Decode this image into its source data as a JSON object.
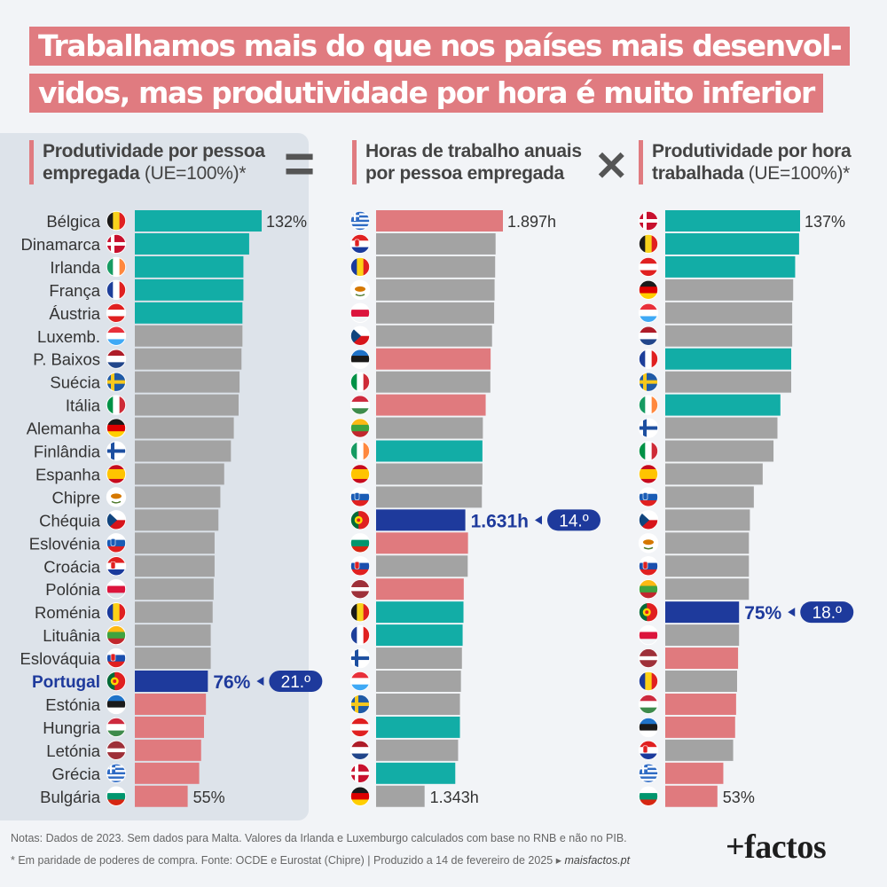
{
  "title": {
    "line1": "Trabalhamos mais do que nos países mais desenvol-",
    "line2": "vidos, mas produtividade por hora é muito inferior"
  },
  "headers": {
    "col1": {
      "bold1": "Produtividade por pessoa",
      "bold2": "empregada",
      "light": " (UE=100%)*"
    },
    "col2": {
      "bold1": "Horas de trabalho anuais",
      "bold2": "por pessoa empregada"
    },
    "col3": {
      "bold1": "Produtividade por hora",
      "bold2": "trabalhada",
      "light": " (UE=100%)*"
    }
  },
  "operators": {
    "equals": "=",
    "times": "✕"
  },
  "colors": {
    "teal": "#12ada6",
    "gray": "#a3a3a3",
    "red": "#e07a7e",
    "navy": "#1e3a9c",
    "title_bg": "#e07b80"
  },
  "chart_data": [
    {
      "type": "bar",
      "orientation": "horizontal",
      "name": "Produtividade por pessoa empregada (UE=100%)",
      "categories": [
        "Bélgica",
        "Dinamarca",
        "Irlanda",
        "França",
        "Áustria",
        "Luxemb.",
        "P. Baixos",
        "Suécia",
        "Itália",
        "Alemanha",
        "Finlândia",
        "Espanha",
        "Chipre",
        "Chéquia",
        "Eslovénia",
        "Croácia",
        "Polónia",
        "Roménia",
        "Lituânia",
        "Eslováquia",
        "Portugal",
        "Estónia",
        "Hungria",
        "Letónia",
        "Grécia",
        "Bulgária"
      ],
      "values": [
        132,
        119,
        113,
        113,
        112,
        112,
        111,
        109,
        108,
        103,
        100,
        93,
        89,
        87,
        83,
        83,
        82,
        81,
        79,
        79,
        76,
        74,
        72,
        69,
        67,
        55
      ],
      "color_groups": [
        "teal",
        "teal",
        "teal",
        "teal",
        "teal",
        "gray",
        "gray",
        "gray",
        "gray",
        "gray",
        "gray",
        "gray",
        "gray",
        "gray",
        "gray",
        "gray",
        "gray",
        "gray",
        "gray",
        "gray",
        "navy",
        "red",
        "red",
        "red",
        "red",
        "red"
      ],
      "highlight": {
        "country": "Portugal",
        "label": "76%",
        "rank": "21.º"
      },
      "value_labels": {
        "first": "132%",
        "last": "55%"
      }
    },
    {
      "type": "bar",
      "orientation": "horizontal",
      "name": "Horas de trabalho anuais por pessoa empregada",
      "flags": [
        "gr",
        "hr",
        "ro",
        "cy",
        "pl",
        "cz",
        "ee",
        "it",
        "hu",
        "lt",
        "ie",
        "es",
        "si",
        "pt",
        "bg",
        "sk",
        "lv",
        "be",
        "fr",
        "fi",
        "lu",
        "se",
        "at",
        "nl",
        "dk",
        "de"
      ],
      "values": [
        1897,
        1845,
        1842,
        1838,
        1835,
        1820,
        1810,
        1808,
        1775,
        1755,
        1752,
        1752,
        1748,
        1631,
        1650,
        1648,
        1620,
        1618,
        1612,
        1607,
        1600,
        1593,
        1593,
        1580,
        1560,
        1343
      ],
      "color_groups": [
        "red",
        "gray",
        "gray",
        "gray",
        "gray",
        "gray",
        "red",
        "gray",
        "red",
        "gray",
        "teal",
        "gray",
        "gray",
        "navy",
        "red",
        "gray",
        "red",
        "teal",
        "teal",
        "gray",
        "gray",
        "gray",
        "teal",
        "gray",
        "teal",
        "gray"
      ],
      "highlight": {
        "country": "Portugal",
        "label": "1.631h",
        "rank": "14.º"
      },
      "value_labels": {
        "first": "1.897h",
        "last": "1.343h"
      }
    },
    {
      "type": "bar",
      "orientation": "horizontal",
      "name": "Produtividade por hora trabalhada (UE=100%)",
      "flags": [
        "dk",
        "be",
        "at",
        "de",
        "lu",
        "nl",
        "fr",
        "se",
        "ie",
        "fi",
        "it",
        "es",
        "si",
        "cz",
        "cy",
        "sk",
        "lt",
        "pt",
        "pl",
        "lv",
        "ro",
        "hu",
        "ee",
        "hr",
        "gr",
        "bg"
      ],
      "values": [
        137,
        136,
        132,
        130,
        129,
        129,
        128,
        128,
        117,
        114,
        110,
        99,
        90,
        86,
        85,
        85,
        85,
        75,
        75,
        74,
        73,
        72,
        71,
        69,
        59,
        53
      ],
      "color_groups": [
        "teal",
        "teal",
        "teal",
        "gray",
        "gray",
        "gray",
        "teal",
        "gray",
        "teal",
        "gray",
        "gray",
        "gray",
        "gray",
        "gray",
        "gray",
        "gray",
        "gray",
        "navy",
        "gray",
        "red",
        "gray",
        "red",
        "red",
        "gray",
        "red",
        "red"
      ],
      "highlight": {
        "country": "Portugal",
        "label": "75%",
        "rank": "18.º"
      },
      "value_labels": {
        "first": "137%",
        "last": "53%"
      }
    }
  ],
  "notes": {
    "line1": "Notas: Dados de 2023. Sem dados para Malta. Valores da Irlanda e Luxemburgo calculados com base no RNB e não no PIB.",
    "line2": "* Em paridade de poderes de compra. Fonte: OCDE e Eurostat (Chipre)  |  Produzido a 14 de fevereiro de 2025 ▸ ",
    "site": "maisfactos.pt"
  },
  "brand": "+factos"
}
